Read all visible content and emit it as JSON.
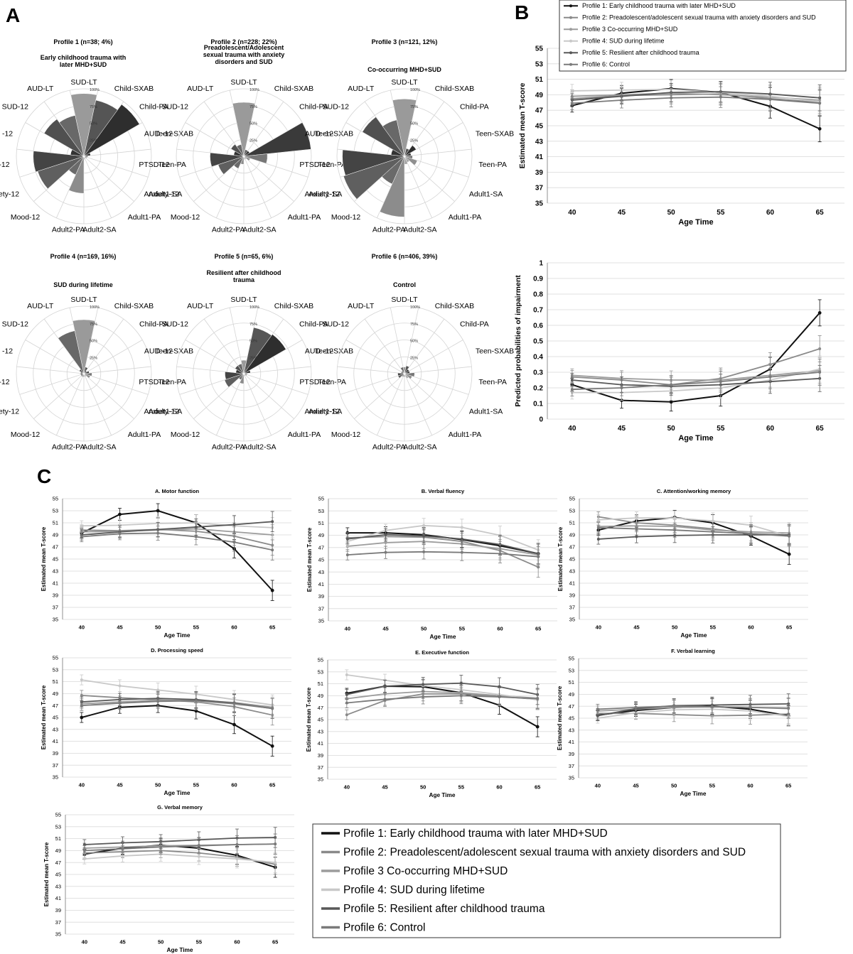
{
  "panel_labels": [
    "A",
    "B",
    "C"
  ],
  "colors": {
    "p1": "#111111",
    "p2": "#8a8a8a",
    "p3": "#9c9c9c",
    "p4": "#c8c8c8",
    "p5": "#585858",
    "p6": "#7a7a7a"
  },
  "legend": [
    "Profile 1: Early childhood trauma with later MHD+SUD",
    "Profile 2: Preadolescent/adolescent sexual trauma with anxiety disorders  and SUD",
    "Profile 3 Co-occurring MHD+SUD",
    "Profile 4: SUD during lifetime",
    "Profile 5: Resilient after childhood trauma",
    "Profile 6: Control"
  ],
  "chart_data": [
    {
      "id": "A",
      "type": "polar-bar",
      "axis_labels": [
        "SUD-LT",
        "Child-SXAB",
        "Child-PA",
        "Teen-SXAB",
        "Teen-PA",
        "Adult1-SA",
        "Adult1-PA",
        "Adult2-SA",
        "Adult2-PA",
        "Mood-12",
        "Anxiety-12",
        "PTSD-12",
        "AUD -12",
        "SUD-12",
        "AUD-LT"
      ],
      "ring_labels": [
        "25%",
        "50%",
        "75%",
        "100%"
      ],
      "profiles": [
        {
          "header": "Profile 1 (n=38; 4%)",
          "title": "Early childhood trauma with later MHD+SUD",
          "values": [
            0.93,
            0.85,
            0.95,
            0.1,
            0.06,
            0.05,
            0.04,
            0.05,
            0.55,
            0.3,
            0.72,
            0.75,
            0.2,
            0.68,
            0.62
          ]
        },
        {
          "header": "Profile 2 (n=228; 22%)",
          "title": "Preadolescent/Adolescent sexual trauma with anxiety disorders and SUD",
          "values": [
            0.8,
            0.1,
            0.1,
            1.0,
            0.35,
            0.1,
            0.05,
            0.05,
            0.12,
            0.2,
            0.4,
            0.5,
            0.15,
            0.22,
            0.18
          ]
        },
        {
          "header": "Profile 3 (n=121, 12%)",
          "title": "Co-occurring MHD+SUD",
          "values": [
            0.85,
            0.12,
            0.2,
            0.1,
            0.12,
            0.2,
            0.1,
            0.12,
            0.9,
            0.45,
            0.95,
            0.92,
            0.2,
            0.72,
            0.55
          ]
        },
        {
          "header": "Profile 4 (n=169, 16%)",
          "title": "SUD during lifetime",
          "values": [
            0.8,
            0.1,
            0.05,
            0.08,
            0.12,
            0.1,
            0.05,
            0.05,
            0.05,
            0.05,
            0.05,
            0.05,
            0.05,
            0.08,
            0.65
          ]
        },
        {
          "header": "Profile 5 (n=65, 6%)",
          "title": "Resilient after childhood trauma",
          "values": [
            0.2,
            0.7,
            0.72,
            0.1,
            0.05,
            0.05,
            0.04,
            0.04,
            0.15,
            0.1,
            0.3,
            0.28,
            0.12,
            0.15,
            0.15
          ]
        },
        {
          "header": "Profile 6 (n=406, 39%)",
          "title": "Control",
          "values": [
            0.1,
            0.12,
            0.08,
            0.08,
            0.15,
            0.12,
            0.08,
            0.05,
            0.05,
            0.05,
            0.1,
            0.1,
            0.05,
            0.05,
            0.1
          ]
        }
      ]
    },
    {
      "id": "B-top",
      "type": "line",
      "x": [
        40,
        45,
        50,
        55,
        60,
        65
      ],
      "xlabel": "Age Time",
      "ylabel": "Estimated mean T-score",
      "ylim": [
        35,
        55
      ],
      "yticks": [
        35,
        37,
        39,
        41,
        43,
        45,
        47,
        49,
        51,
        53,
        55
      ],
      "series": [
        {
          "name": "Profile 1: Early childhood trauma with later MHD+SUD",
          "values": [
            47.6,
            49.2,
            49.8,
            49.3,
            47.5,
            44.6
          ]
        },
        {
          "name": "Profile 2: Preadolescent/adolescent sexual trauma with anxiety disorders  and SUD",
          "values": [
            48.5,
            48.9,
            49.0,
            49.1,
            48.5,
            48.0
          ]
        },
        {
          "name": "Profile 3 Co-occurring MHD+SUD",
          "values": [
            48.8,
            49.0,
            49.2,
            49.0,
            48.7,
            48.3
          ]
        },
        {
          "name": "Profile 4: SUD during lifetime",
          "values": [
            49.5,
            49.6,
            49.7,
            49.3,
            48.8,
            48.1
          ]
        },
        {
          "name": "Profile 5: Resilient after childhood trauma",
          "values": [
            48.3,
            48.8,
            49.3,
            49.4,
            49.1,
            48.6
          ]
        },
        {
          "name": "Profile 6: Control",
          "values": [
            47.9,
            48.3,
            48.6,
            48.7,
            48.4,
            47.9
          ]
        }
      ]
    },
    {
      "id": "B-bottom",
      "type": "line",
      "x": [
        40,
        45,
        50,
        55,
        60,
        65
      ],
      "xlabel": "Age Time",
      "ylabel": "Predicted probabilities of impairment",
      "ylim": [
        0,
        1
      ],
      "yticks": [
        0,
        0.1,
        0.2,
        0.3,
        0.4,
        0.5,
        0.6,
        0.7,
        0.8,
        0.9,
        1
      ],
      "series": [
        {
          "name": "Profile 1: Early childhood trauma with later MHD+SUD",
          "values": [
            0.22,
            0.12,
            0.11,
            0.15,
            0.32,
            0.68
          ]
        },
        {
          "name": "Profile 2: Preadolescent/adolescent sexual trauma with anxiety disorders  and SUD",
          "values": [
            0.27,
            0.25,
            0.22,
            0.26,
            0.35,
            0.45
          ]
        },
        {
          "name": "Profile 3 Co-occurring MHD+SUD",
          "values": [
            0.28,
            0.26,
            0.25,
            0.25,
            0.28,
            0.31
          ]
        },
        {
          "name": "Profile 4: SUD during lifetime",
          "values": [
            0.17,
            0.17,
            0.18,
            0.2,
            0.25,
            0.32
          ]
        },
        {
          "name": "Profile 5: Resilient after childhood trauma",
          "values": [
            0.25,
            0.22,
            0.21,
            0.22,
            0.24,
            0.26
          ]
        },
        {
          "name": "Profile 6: Control",
          "values": [
            0.19,
            0.2,
            0.22,
            0.24,
            0.27,
            0.3
          ]
        }
      ]
    },
    {
      "id": "C-A",
      "type": "line",
      "title": "A. Motor function",
      "x": [
        40,
        45,
        50,
        55,
        60,
        65
      ],
      "xlabel": "Age Time",
      "ylabel": "Estimated mean T-score",
      "ylim": [
        35,
        55
      ],
      "yticks": [
        35,
        37,
        39,
        41,
        43,
        45,
        47,
        49,
        51,
        53,
        55
      ],
      "series": [
        {
          "name": "Profile 1",
          "values": [
            49.3,
            52.4,
            53.0,
            51.0,
            46.7,
            39.8
          ]
        },
        {
          "name": "Profile 2",
          "values": [
            49.8,
            49.7,
            49.9,
            49.6,
            48.8,
            47.3
          ]
        },
        {
          "name": "Profile 3",
          "values": [
            49.5,
            49.6,
            49.8,
            50.0,
            49.5,
            49.0
          ]
        },
        {
          "name": "Profile 4",
          "values": [
            50.5,
            50.6,
            50.9,
            51.0,
            50.5,
            50.2
          ]
        },
        {
          "name": "Profile 5",
          "values": [
            49.0,
            49.5,
            49.9,
            50.3,
            50.7,
            51.2
          ]
        },
        {
          "name": "Profile 6",
          "values": [
            48.7,
            49.2,
            49.3,
            48.7,
            47.8,
            46.5
          ]
        }
      ]
    },
    {
      "id": "C-B",
      "type": "line",
      "title": "B. Verbal fluency",
      "x": [
        40,
        45,
        50,
        55,
        60,
        65
      ],
      "xlabel": "Age Time",
      "ylabel": "Estimated mean T-score",
      "ylim": [
        35,
        55
      ],
      "yticks": [
        35,
        37,
        39,
        41,
        43,
        45,
        47,
        49,
        51,
        53,
        55
      ],
      "series": [
        {
          "name": "Profile 1",
          "values": [
            49.4,
            49.4,
            49.1,
            48.3,
            47.3,
            46.0
          ]
        },
        {
          "name": "Profile 2",
          "values": [
            48.6,
            48.8,
            48.7,
            48.0,
            46.5,
            43.8
          ]
        },
        {
          "name": "Profile 3",
          "values": [
            47.2,
            47.8,
            48.0,
            47.6,
            46.8,
            45.8
          ]
        },
        {
          "name": "Profile 4",
          "values": [
            48.0,
            49.8,
            50.6,
            50.3,
            49.0,
            46.6
          ]
        },
        {
          "name": "Profile 5",
          "values": [
            48.4,
            49.1,
            48.9,
            48.4,
            47.5,
            46.0
          ]
        },
        {
          "name": "Profile 6",
          "values": [
            45.8,
            46.2,
            46.3,
            46.2,
            46.0,
            45.5
          ]
        }
      ]
    },
    {
      "id": "C-C",
      "type": "line",
      "title": "C. Attention/working memory",
      "x": [
        40,
        45,
        50,
        55,
        60,
        65
      ],
      "xlabel": "Age Time",
      "ylabel": "Estimated mean T-score",
      "ylim": [
        35,
        55
      ],
      "yticks": [
        35,
        37,
        39,
        41,
        43,
        45,
        47,
        49,
        51,
        53,
        55
      ],
      "series": [
        {
          "name": "Profile 1",
          "values": [
            49.8,
            51.3,
            51.9,
            51.0,
            48.8,
            45.8
          ]
        },
        {
          "name": "Profile 2",
          "values": [
            52.0,
            51.0,
            50.6,
            50.0,
            49.2,
            49.0
          ]
        },
        {
          "name": "Profile 3",
          "values": [
            50.4,
            50.5,
            50.4,
            49.8,
            49.5,
            49.3
          ]
        },
        {
          "name": "Profile 4",
          "values": [
            51.5,
            51.8,
            51.8,
            51.3,
            50.6,
            48.8
          ]
        },
        {
          "name": "Profile 5",
          "values": [
            48.3,
            48.7,
            48.9,
            49.0,
            49.0,
            49.0
          ]
        },
        {
          "name": "Profile 6",
          "values": [
            50.2,
            50.0,
            49.8,
            49.5,
            49.2,
            48.8
          ]
        }
      ]
    },
    {
      "id": "C-D",
      "type": "line",
      "title": "D. Processing speed",
      "x": [
        40,
        45,
        50,
        55,
        60,
        65
      ],
      "xlabel": "Age Time",
      "ylabel": "Estimated mean T-score",
      "ylim": [
        35,
        55
      ],
      "yticks": [
        35,
        37,
        39,
        41,
        43,
        45,
        47,
        49,
        51,
        53,
        55
      ],
      "series": [
        {
          "name": "Profile 1",
          "values": [
            45.0,
            46.7,
            47.0,
            46.1,
            43.8,
            40.2
          ]
        },
        {
          "name": "Profile 2",
          "values": [
            48.7,
            48.3,
            48.0,
            47.6,
            46.8,
            45.4
          ]
        },
        {
          "name": "Profile 3",
          "values": [
            47.3,
            47.6,
            47.9,
            47.9,
            47.5,
            46.7
          ]
        },
        {
          "name": "Profile 4",
          "values": [
            51.3,
            50.3,
            49.6,
            48.9,
            48.0,
            47.1
          ]
        },
        {
          "name": "Profile 5",
          "values": [
            47.6,
            48.0,
            48.2,
            48.0,
            47.4,
            46.5
          ]
        },
        {
          "name": "Profile 6",
          "values": [
            47.0,
            47.4,
            47.7,
            47.8,
            47.3,
            46.5
          ]
        }
      ]
    },
    {
      "id": "C-E",
      "type": "line",
      "title": "E. Executive function",
      "x": [
        40,
        45,
        50,
        55,
        60,
        65
      ],
      "xlabel": "Age Time",
      "ylabel": "Estimated mean T-score",
      "ylim": [
        35,
        55
      ],
      "yticks": [
        35,
        37,
        39,
        41,
        43,
        45,
        47,
        49,
        51,
        53,
        55
      ],
      "series": [
        {
          "name": "Profile 1",
          "values": [
            49.4,
            50.6,
            50.5,
            49.5,
            47.4,
            43.8
          ]
        },
        {
          "name": "Profile 2",
          "values": [
            45.8,
            48.2,
            49.3,
            49.3,
            48.9,
            48.4
          ]
        },
        {
          "name": "Profile 3",
          "values": [
            48.5,
            49.3,
            49.7,
            49.5,
            49.0,
            48.6
          ]
        },
        {
          "name": "Profile 4",
          "values": [
            52.5,
            51.6,
            50.7,
            50.0,
            49.2,
            48.3
          ]
        },
        {
          "name": "Profile 5",
          "values": [
            49.2,
            50.6,
            50.9,
            51.1,
            50.5,
            49.2
          ]
        },
        {
          "name": "Profile 6",
          "values": [
            47.8,
            48.4,
            48.8,
            49.0,
            48.8,
            48.5
          ]
        }
      ]
    },
    {
      "id": "C-F",
      "type": "line",
      "title": "F. Verbal learning",
      "x": [
        40,
        45,
        50,
        55,
        60,
        65
      ],
      "xlabel": "Age Time",
      "ylabel": "Estimated mean T-score",
      "ylim": [
        35,
        55
      ],
      "yticks": [
        35,
        37,
        39,
        41,
        43,
        45,
        47,
        49,
        51,
        53,
        55
      ],
      "series": [
        {
          "name": "Profile 1",
          "values": [
            45.5,
            46.3,
            46.8,
            47.0,
            46.5,
            45.4
          ]
        },
        {
          "name": "Profile 2",
          "values": [
            45.8,
            45.8,
            45.6,
            45.4,
            45.5,
            45.7
          ]
        },
        {
          "name": "Profile 3",
          "values": [
            46.2,
            46.5,
            46.8,
            46.9,
            46.8,
            46.6
          ]
        },
        {
          "name": "Profile 4",
          "values": [
            45.0,
            45.9,
            46.4,
            46.5,
            46.2,
            45.3
          ]
        },
        {
          "name": "Profile 5",
          "values": [
            45.4,
            46.6,
            47.1,
            47.2,
            47.3,
            47.4
          ]
        },
        {
          "name": "Profile 6",
          "values": [
            46.5,
            46.8,
            47.0,
            46.9,
            46.8,
            46.7
          ]
        }
      ]
    },
    {
      "id": "C-G",
      "type": "line",
      "title": "G. Verbal memory",
      "x": [
        40,
        45,
        50,
        55,
        60,
        65
      ],
      "xlabel": "Age Time",
      "ylabel": "Estimated mean T-score",
      "ylim": [
        35,
        55
      ],
      "yticks": [
        35,
        37,
        39,
        41,
        43,
        45,
        47,
        49,
        51,
        53,
        55
      ],
      "series": [
        {
          "name": "Profile 1",
          "values": [
            48.4,
            49.4,
            49.9,
            49.4,
            48.2,
            46.2
          ]
        },
        {
          "name": "Profile 2",
          "values": [
            48.6,
            48.8,
            49.0,
            48.6,
            47.9,
            46.7
          ]
        },
        {
          "name": "Profile 3",
          "values": [
            49.4,
            49.6,
            49.8,
            49.9,
            50.0,
            50.1
          ]
        },
        {
          "name": "Profile 4",
          "values": [
            47.6,
            48.1,
            48.4,
            48.0,
            47.6,
            47.0
          ]
        },
        {
          "name": "Profile 5",
          "values": [
            50.0,
            50.3,
            50.5,
            50.8,
            51.1,
            51.2
          ]
        },
        {
          "name": "Profile 6",
          "values": [
            49.0,
            49.3,
            49.6,
            49.8,
            50.0,
            50.1
          ]
        }
      ]
    }
  ]
}
